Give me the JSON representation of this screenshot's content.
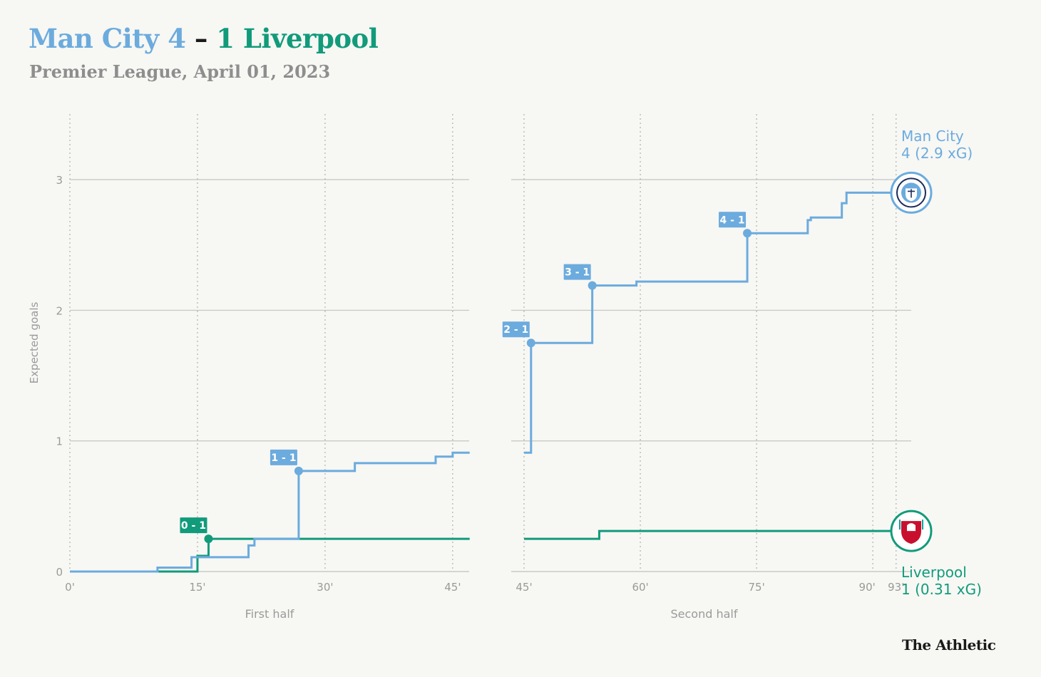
{
  "header": {
    "home_team": "Man City",
    "home_score": "4",
    "separator": "–",
    "away_score": "1",
    "away_team": "Liverpool",
    "subtitle": "Premier League, April 01, 2023"
  },
  "brand": "The Athletic",
  "colors": {
    "home": "#6cabdd",
    "away": "#119b7b",
    "background": "#f7f7f4"
  },
  "icons": {
    "home_badge": "man-city-crest-icon",
    "away_badge": "liverpool-crest-icon"
  },
  "chart_data": {
    "type": "line",
    "step": true,
    "ylabel": "Expected goals",
    "ylim": [
      0,
      3.3
    ],
    "yticks": [
      0,
      1,
      2,
      3
    ],
    "grid": true,
    "panels": [
      {
        "label": "First half",
        "xlim": [
          0,
          47
        ],
        "xticks": [
          0,
          15,
          30,
          45
        ],
        "xtick_labels": [
          "0'",
          "15'",
          "30'",
          "45'"
        ]
      },
      {
        "label": "Second half",
        "xlim": [
          45,
          93
        ],
        "xticks": [
          45,
          60,
          75,
          90,
          93
        ],
        "xtick_labels": [
          "45'",
          "60'",
          "75'",
          "90'",
          "93'"
        ]
      }
    ],
    "series": [
      {
        "name": "Man City",
        "team": "home",
        "end_label": [
          "Man City",
          "4 (2.9 xG)"
        ],
        "steps_first_half": [
          [
            0,
            0
          ],
          [
            10.3,
            0.03
          ],
          [
            14.3,
            0.11
          ],
          [
            21,
            0.2
          ],
          [
            21.7,
            0.25
          ],
          [
            26.9,
            0.77
          ],
          [
            33.5,
            0.83
          ],
          [
            43,
            0.88
          ],
          [
            45,
            0.91
          ],
          [
            47,
            0.91
          ]
        ],
        "steps_second_half": [
          [
            45,
            0.91
          ],
          [
            45.9,
            1.75
          ],
          [
            53.8,
            2.19
          ],
          [
            59.5,
            2.22
          ],
          [
            73.8,
            2.59
          ],
          [
            81.6,
            2.69
          ],
          [
            82,
            2.71
          ],
          [
            86,
            2.82
          ],
          [
            86.6,
            2.9
          ],
          [
            93,
            2.9
          ]
        ]
      },
      {
        "name": "Liverpool",
        "team": "away",
        "end_label": [
          "Liverpool",
          "1 (0.31 xG)"
        ],
        "steps_first_half": [
          [
            10.3,
            0
          ],
          [
            15,
            0.12
          ],
          [
            16.3,
            0.25
          ],
          [
            47,
            0.25
          ]
        ],
        "steps_second_half": [
          [
            45,
            0.25
          ],
          [
            54.7,
            0.31
          ],
          [
            93,
            0.31
          ]
        ]
      }
    ],
    "goals": [
      {
        "team": "away",
        "label": "0 - 1",
        "half": 1,
        "minute": 16.3,
        "xg": 0.25
      },
      {
        "team": "home",
        "label": "1 - 1",
        "half": 1,
        "minute": 26.9,
        "xg": 0.77
      },
      {
        "team": "home",
        "label": "2 - 1",
        "half": 2,
        "minute": 45.9,
        "xg": 1.75
      },
      {
        "team": "home",
        "label": "3 - 1",
        "half": 2,
        "minute": 53.8,
        "xg": 2.19
      },
      {
        "team": "home",
        "label": "4 - 1",
        "half": 2,
        "minute": 73.8,
        "xg": 2.59
      }
    ]
  }
}
